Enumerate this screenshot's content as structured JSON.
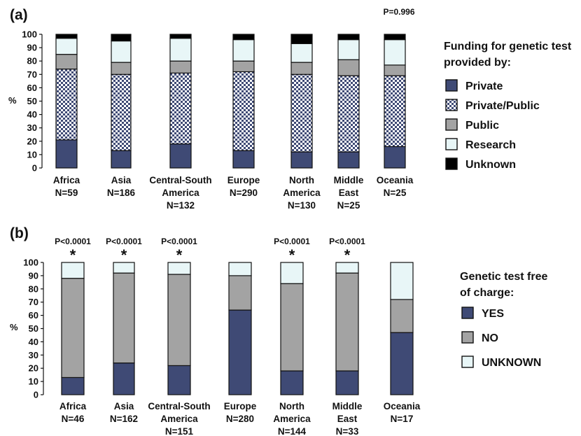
{
  "colors": {
    "private": "#3f4a75",
    "public": "#a3a3a3",
    "research": "#e8f6f7",
    "unknown": "#000000",
    "yes": "#3f4a75",
    "no": "#a3a3a3",
    "unknown_b": "#e8f6f7",
    "checker_light": "#ffffff",
    "checker_dark": "#3f4a75",
    "outline": "#111111"
  },
  "chart_data": [
    {
      "type": "bar",
      "stacked": true,
      "panel_label": "(a)",
      "ylabel": "%",
      "ylim": [
        0,
        100
      ],
      "yticks": [
        0,
        10,
        20,
        30,
        40,
        50,
        60,
        70,
        80,
        90,
        100
      ],
      "annotation": "P=0.996",
      "categories": [
        [
          "Africa",
          "N=59"
        ],
        [
          "Asia",
          "N=186"
        ],
        [
          "Central-South",
          "America",
          "N=132"
        ],
        [
          "Europe",
          "N=290"
        ],
        [
          "North",
          "America",
          "N=130"
        ],
        [
          "Middle",
          "East",
          "N=25"
        ],
        [
          "Oceania",
          "N=25"
        ]
      ],
      "legend": {
        "title": [
          "Funding for genetic test",
          "provided by:"
        ],
        "placement": "right"
      },
      "series": [
        {
          "name": "Private",
          "key": "private",
          "values": [
            21,
            13,
            18,
            13,
            12,
            12,
            16
          ]
        },
        {
          "name": "Private/Public",
          "key": "checker",
          "values": [
            53,
            57,
            53,
            59,
            58,
            57,
            53
          ]
        },
        {
          "name": "Public",
          "key": "public",
          "values": [
            11,
            9,
            9,
            8,
            9,
            12,
            8
          ]
        },
        {
          "name": "Research",
          "key": "research",
          "values": [
            12,
            16,
            17,
            16,
            14,
            15,
            19
          ]
        },
        {
          "name": "Unknown",
          "key": "unknown",
          "values": [
            3,
            5,
            3,
            4,
            7,
            4,
            4
          ]
        }
      ]
    },
    {
      "type": "bar",
      "stacked": true,
      "panel_label": "(b)",
      "ylabel": "%",
      "ylim": [
        0,
        100
      ],
      "yticks": [
        0,
        10,
        20,
        30,
        40,
        50,
        60,
        70,
        80,
        90,
        100
      ],
      "categories": [
        [
          "Africa",
          "N=46"
        ],
        [
          "Asia",
          "N=162"
        ],
        [
          "Central-South",
          "America",
          "N=151"
        ],
        [
          "Europe",
          "N=280"
        ],
        [
          "North",
          "America",
          "N=144"
        ],
        [
          "Middle",
          "East",
          "N=33"
        ],
        [
          "Oceania",
          "N=17"
        ]
      ],
      "significance": [
        {
          "p": "P<0.0001",
          "star": "*"
        },
        {
          "p": "P<0.0001",
          "star": "*"
        },
        {
          "p": "P<0.0001",
          "star": "*"
        },
        null,
        {
          "p": "P<0.0001",
          "star": "*"
        },
        {
          "p": "P<0.0001",
          "star": "*"
        },
        null
      ],
      "legend": {
        "title": [
          "Genetic test free",
          " of charge:"
        ],
        "placement": "right"
      },
      "series": [
        {
          "name": "YES",
          "key": "yes",
          "values": [
            13,
            24,
            22,
            64,
            18,
            18,
            47
          ]
        },
        {
          "name": "NO",
          "key": "no",
          "values": [
            75,
            68,
            69,
            26,
            66,
            74,
            25
          ]
        },
        {
          "name": "UNKNOWN",
          "key": "unknown_b",
          "values": [
            12,
            8,
            9,
            10,
            16,
            8,
            28
          ]
        }
      ]
    }
  ]
}
